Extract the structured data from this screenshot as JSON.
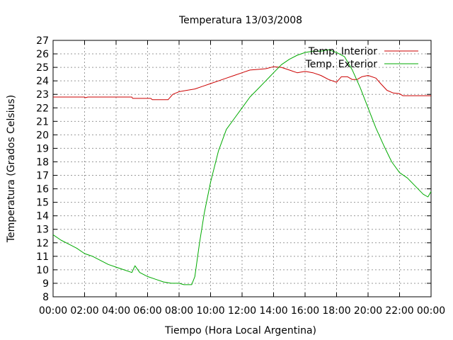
{
  "chart_data": {
    "type": "line",
    "title": "Temperatura 13/03/2008",
    "xlabel": "Tiempo (Hora Local Argentina)",
    "ylabel": "Temperatura (Grados Celsius)",
    "xlim": [
      0,
      24
    ],
    "ylim": [
      8,
      27
    ],
    "x_ticks": [
      "00:00",
      "02:00",
      "04:00",
      "06:00",
      "08:00",
      "10:00",
      "12:00",
      "14:00",
      "16:00",
      "18:00",
      "20:00",
      "22:00",
      "00:00"
    ],
    "y_ticks": [
      8,
      9,
      10,
      11,
      12,
      13,
      14,
      15,
      16,
      17,
      18,
      19,
      20,
      21,
      22,
      23,
      24,
      25,
      26,
      27
    ],
    "grid": true,
    "legend_position": "top-right",
    "series": [
      {
        "name": "Temp. Interior",
        "color": "#cc0000",
        "points": [
          [
            0,
            22.8
          ],
          [
            2,
            22.8
          ],
          [
            2.05,
            22.75
          ],
          [
            2.2,
            22.8
          ],
          [
            5,
            22.8
          ],
          [
            5.05,
            22.7
          ],
          [
            6.2,
            22.7
          ],
          [
            6.3,
            22.6
          ],
          [
            7.3,
            22.6
          ],
          [
            7.6,
            23.0
          ],
          [
            8.0,
            23.2
          ],
          [
            8.5,
            23.3
          ],
          [
            9.0,
            23.4
          ],
          [
            9.5,
            23.6
          ],
          [
            10.0,
            23.8
          ],
          [
            10.5,
            24.0
          ],
          [
            11.0,
            24.2
          ],
          [
            11.5,
            24.4
          ],
          [
            12.0,
            24.6
          ],
          [
            12.5,
            24.8
          ],
          [
            13.0,
            24.85
          ],
          [
            13.5,
            24.9
          ],
          [
            14.0,
            25.05
          ],
          [
            14.5,
            25.0
          ],
          [
            15.0,
            24.8
          ],
          [
            15.5,
            24.6
          ],
          [
            16.0,
            24.7
          ],
          [
            16.5,
            24.6
          ],
          [
            17.0,
            24.4
          ],
          [
            17.5,
            24.1
          ],
          [
            18.0,
            23.9
          ],
          [
            18.3,
            24.3
          ],
          [
            18.7,
            24.3
          ],
          [
            19.0,
            24.1
          ],
          [
            19.3,
            24.1
          ],
          [
            19.6,
            24.3
          ],
          [
            20.0,
            24.4
          ],
          [
            20.5,
            24.2
          ],
          [
            20.8,
            23.8
          ],
          [
            21.2,
            23.3
          ],
          [
            21.6,
            23.1
          ],
          [
            22.0,
            23.05
          ],
          [
            22.2,
            22.9
          ],
          [
            24,
            22.9
          ]
        ]
      },
      {
        "name": "Temp. Exterior",
        "color": "#00aa00",
        "points": [
          [
            0,
            12.6
          ],
          [
            0.5,
            12.2
          ],
          [
            1.0,
            11.9
          ],
          [
            1.5,
            11.6
          ],
          [
            2.0,
            11.2
          ],
          [
            2.5,
            11.0
          ],
          [
            3.0,
            10.7
          ],
          [
            3.5,
            10.4
          ],
          [
            4.0,
            10.2
          ],
          [
            4.5,
            10.0
          ],
          [
            5.0,
            9.8
          ],
          [
            5.2,
            10.3
          ],
          [
            5.5,
            9.8
          ],
          [
            6.0,
            9.5
          ],
          [
            6.5,
            9.3
          ],
          [
            7.0,
            9.1
          ],
          [
            7.5,
            9.0
          ],
          [
            8.0,
            9.0
          ],
          [
            8.3,
            8.9
          ],
          [
            8.8,
            8.9
          ],
          [
            9.0,
            9.5
          ],
          [
            9.3,
            12.0
          ],
          [
            9.6,
            14.2
          ],
          [
            10.0,
            16.5
          ],
          [
            10.5,
            18.8
          ],
          [
            11.0,
            20.4
          ],
          [
            11.5,
            21.2
          ],
          [
            12.0,
            22.0
          ],
          [
            12.5,
            22.8
          ],
          [
            13.0,
            23.4
          ],
          [
            13.5,
            24.0
          ],
          [
            14.0,
            24.6
          ],
          [
            14.5,
            25.2
          ],
          [
            15.0,
            25.6
          ],
          [
            15.5,
            25.9
          ],
          [
            16.0,
            26.1
          ],
          [
            16.5,
            26.2
          ],
          [
            17.0,
            26.2
          ],
          [
            17.5,
            26.3
          ],
          [
            18.0,
            26.1
          ],
          [
            18.5,
            25.8
          ],
          [
            19.0,
            24.8
          ],
          [
            19.5,
            23.5
          ],
          [
            20.0,
            22.0
          ],
          [
            20.5,
            20.5
          ],
          [
            21.0,
            19.2
          ],
          [
            21.5,
            18.0
          ],
          [
            22.0,
            17.2
          ],
          [
            22.5,
            16.8
          ],
          [
            23.0,
            16.2
          ],
          [
            23.5,
            15.6
          ],
          [
            23.8,
            15.4
          ],
          [
            24.0,
            15.8
          ]
        ]
      }
    ]
  }
}
